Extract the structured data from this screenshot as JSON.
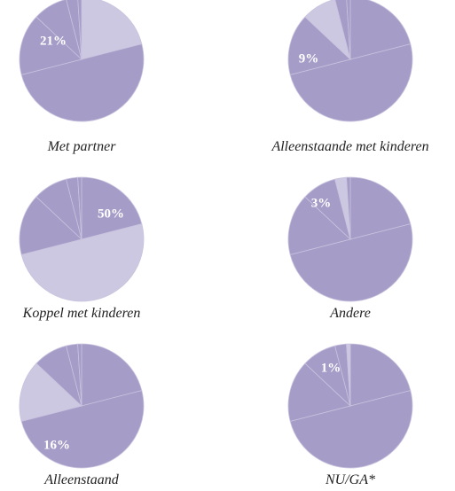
{
  "chart_data": {
    "type": "pie",
    "categories": [
      "Met partner",
      "Koppel met kinderen",
      "Alleenstaand",
      "Alleenstaande met kinderen",
      "Andere",
      "NU/GA*"
    ],
    "values": [
      21,
      50,
      16,
      9,
      3,
      1
    ],
    "value_labels": [
      "21%",
      "50%",
      "16%",
      "9%",
      "3%",
      "1%"
    ],
    "color": "#a59cc7",
    "highlight_color": "#cdc8e1"
  }
}
